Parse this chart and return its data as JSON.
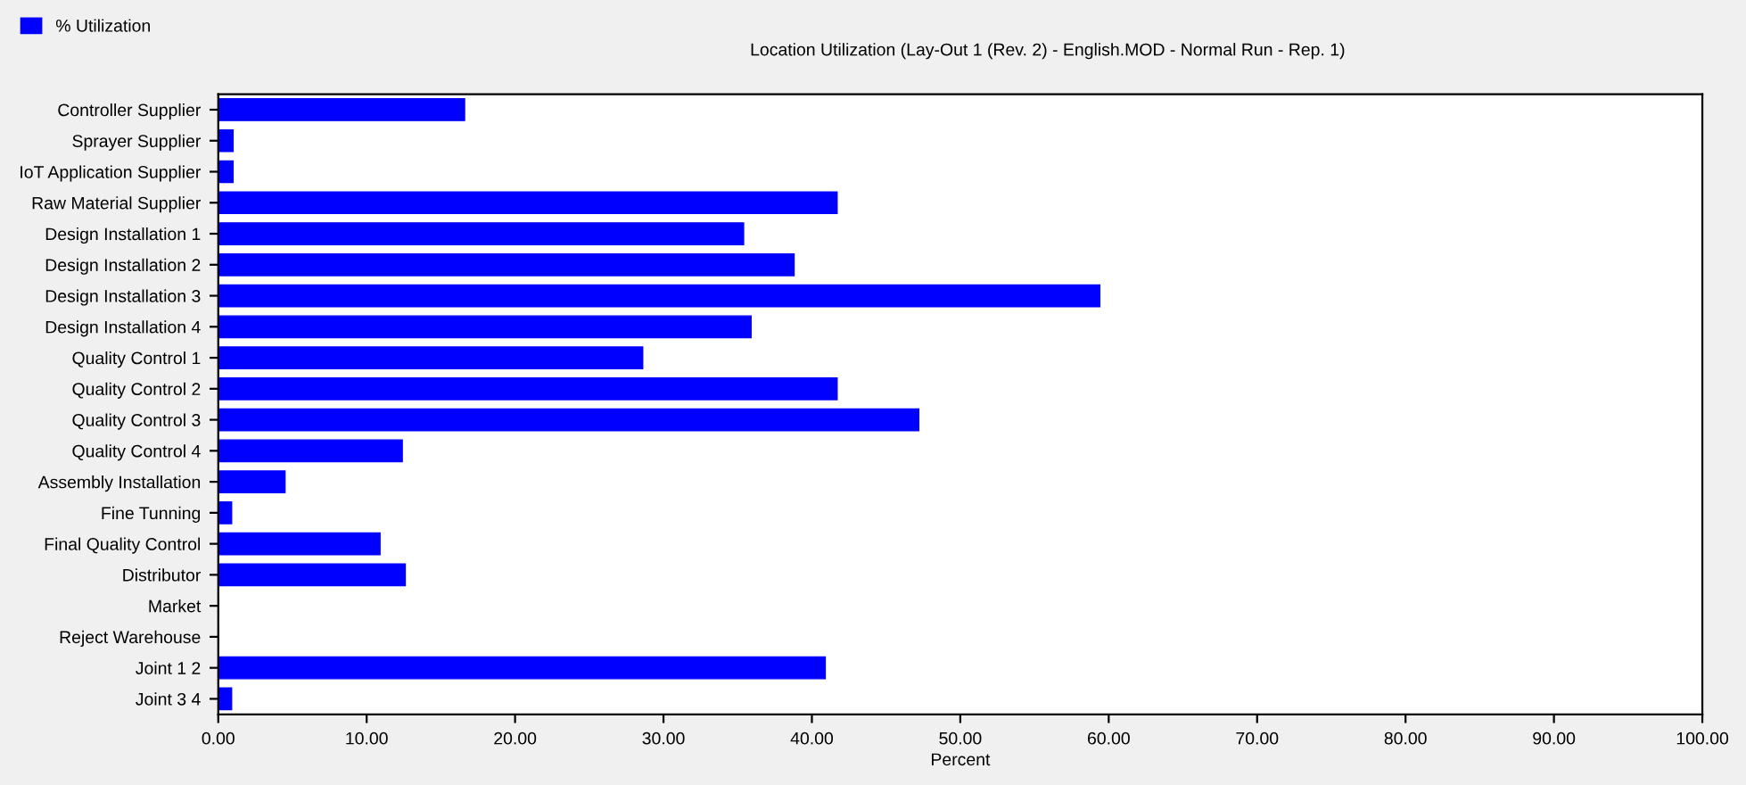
{
  "chart_data": {
    "type": "bar",
    "orientation": "horizontal",
    "title": "Location Utilization (Lay-Out 1 (Rev. 2) - English.MOD - Normal Run - Rep. 1)",
    "xlabel": "Percent",
    "categories": [
      "Controller Supplier",
      "Sprayer Supplier",
      "IoT Application Supplier",
      "Raw Material Supplier",
      "Design Installation 1",
      "Design Installation 2",
      "Design Installation 3",
      "Design Installation 4",
      "Quality Control 1",
      "Quality Control 2",
      "Quality Control 3",
      "Quality Control 4",
      "Assembly Installation",
      "Fine Tunning",
      "Final Quality Control",
      "Distributor",
      "Market",
      "Reject Warehouse",
      "Joint 1 2",
      "Joint 3 4"
    ],
    "series": [
      {
        "name": "% Utilization",
        "color": "#0000ff",
        "values": [
          16.6,
          1.0,
          1.0,
          41.7,
          35.4,
          38.8,
          59.4,
          35.9,
          28.6,
          41.7,
          47.2,
          12.4,
          4.5,
          0.9,
          10.9,
          12.6,
          0,
          0,
          40.9,
          0.9
        ]
      }
    ],
    "xlim": [
      0,
      100
    ],
    "xticks": [
      {
        "value": 0,
        "label": "0.00"
      },
      {
        "value": 10,
        "label": "10.00"
      },
      {
        "value": 20,
        "label": "20.00"
      },
      {
        "value": 30,
        "label": "30.00"
      },
      {
        "value": 40,
        "label": "40.00"
      },
      {
        "value": 50,
        "label": "50.00"
      },
      {
        "value": 60,
        "label": "60.00"
      },
      {
        "value": 70,
        "label": "70.00"
      },
      {
        "value": 80,
        "label": "80.00"
      },
      {
        "value": 90,
        "label": "90.00"
      },
      {
        "value": 100,
        "label": "100.00"
      }
    ],
    "grid": false,
    "legend": "top left"
  }
}
